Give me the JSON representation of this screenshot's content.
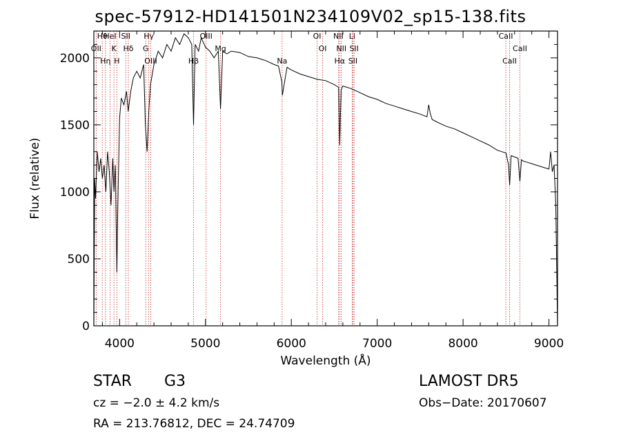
{
  "chart_data": {
    "type": "line",
    "title": "spec-57912-HD141501N234109V02_sp15-138.fits",
    "xlabel": "Wavelength (Å)",
    "ylabel": "Flux (relative)",
    "xlim": [
      3700,
      9100
    ],
    "ylim": [
      0,
      2200
    ],
    "xticks": [
      4000,
      5000,
      6000,
      7000,
      8000,
      9000
    ],
    "yticks": [
      0,
      500,
      1000,
      1500,
      2000
    ],
    "grid": false,
    "series": [
      {
        "x": [
          3700,
          3710,
          3720,
          3740,
          3760,
          3780,
          3800,
          3820,
          3840,
          3860,
          3880,
          3900,
          3920,
          3935,
          3950,
          3968,
          3980,
          4000,
          4020,
          4050,
          4080,
          4100,
          4130,
          4160,
          4200,
          4240,
          4280,
          4300,
          4320,
          4340,
          4360,
          4400,
          4450,
          4500,
          4550,
          4600,
          4650,
          4700,
          4750,
          4800,
          4840,
          4861,
          4880,
          4920,
          4950,
          5000,
          5050,
          5100,
          5150,
          5175,
          5200,
          5250,
          5300,
          5400,
          5500,
          5600,
          5700,
          5800,
          5850,
          5890,
          5895,
          5950,
          6000,
          6100,
          6200,
          6300,
          6400,
          6500,
          6550,
          6563,
          6580,
          6600,
          6700,
          6800,
          6900,
          7000,
          7100,
          7200,
          7300,
          7400,
          7500,
          7580,
          7600,
          7620,
          7640,
          7700,
          7800,
          7900,
          8000,
          8100,
          8200,
          8300,
          8400,
          8450,
          8500,
          8530,
          8542,
          8560,
          8600,
          8640,
          8662,
          8680,
          8700,
          8750,
          8800,
          8850,
          8900,
          8950,
          9000,
          9020,
          9040,
          9060,
          9080,
          9100
        ],
        "y": [
          0,
          1100,
          950,
          1300,
          1150,
          1250,
          1100,
          1200,
          1000,
          1300,
          1150,
          900,
          1250,
          1000,
          1200,
          400,
          900,
          1550,
          1700,
          1650,
          1750,
          1600,
          1750,
          1850,
          1900,
          1850,
          1950,
          1500,
          1300,
          1600,
          1800,
          1950,
          2050,
          2000,
          2100,
          2050,
          2150,
          2100,
          2180,
          2150,
          2100,
          1500,
          2100,
          2050,
          2150,
          2080,
          2050,
          2000,
          2050,
          1620,
          2050,
          2030,
          2050,
          2040,
          2010,
          2000,
          1980,
          1950,
          1940,
          1820,
          1720,
          1930,
          1910,
          1880,
          1860,
          1840,
          1830,
          1800,
          1780,
          1350,
          1760,
          1790,
          1770,
          1740,
          1710,
          1690,
          1660,
          1640,
          1620,
          1600,
          1580,
          1560,
          1650,
          1580,
          1540,
          1520,
          1490,
          1470,
          1440,
          1410,
          1380,
          1350,
          1310,
          1300,
          1290,
          1200,
          1050,
          1270,
          1260,
          1250,
          1080,
          1240,
          1230,
          1220,
          1210,
          1200,
          1190,
          1180,
          1170,
          1300,
          1150,
          1200,
          900,
          0
        ]
      }
    ],
    "lines": [
      {
        "label": "Hθ",
        "x": 3798
      },
      {
        "label": "OII",
        "x": 3727
      },
      {
        "label": "Hη",
        "x": 3835
      },
      {
        "label": "HeI",
        "x": 3889
      },
      {
        "label": "K",
        "x": 3934
      },
      {
        "label": "H",
        "x": 3968
      },
      {
        "label": "SII",
        "x": 4072
      },
      {
        "label": "Hδ",
        "x": 4102
      },
      {
        "label": "OIII",
        "x": 4363
      },
      {
        "label": "Hγ",
        "x": 4340
      },
      {
        "label": "G",
        "x": 4305
      },
      {
        "label": "Hβ",
        "x": 4861
      },
      {
        "label": "OIII",
        "x": 5007
      },
      {
        "label": "Mg",
        "x": 5175
      },
      {
        "label": "Na",
        "x": 5893
      },
      {
        "label": "OI",
        "x": 6300
      },
      {
        "label": "OI",
        "x": 6364
      },
      {
        "label": "Hα",
        "x": 6563
      },
      {
        "label": "NII",
        "x": 6548
      },
      {
        "label": "NII",
        "x": 6583
      },
      {
        "label": "SII",
        "x": 6717
      },
      {
        "label": "Li",
        "x": 6708
      },
      {
        "label": "SII",
        "x": 6731
      },
      {
        "label": "CaII",
        "x": 8542
      },
      {
        "label": "CaII",
        "x": 8498
      },
      {
        "label": "CaII",
        "x": 8662
      }
    ]
  },
  "info": {
    "object_class": "STAR",
    "subclass": "G3",
    "survey": "LAMOST DR5",
    "cz": "cz = −2.0 ± 4.2 km/s",
    "obs_date": "Obs−Date: 20170607",
    "radec": "RA = 213.76812, DEC =  24.74709"
  },
  "colors": {
    "line_marker": "#cc2222",
    "spectrum": "#000000",
    "axes": "#000000"
  }
}
